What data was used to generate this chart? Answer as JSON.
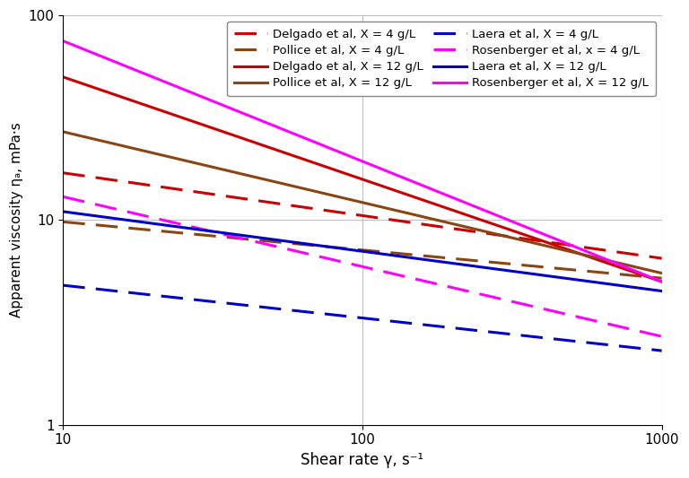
{
  "xlabel": "Shear rate γ, s⁻¹",
  "ylabel": "Apparent viscosity ηₐ, mPa·s",
  "xlim": [
    10,
    1000
  ],
  "ylim": [
    1,
    100
  ],
  "grid_color": "#c0c0c0",
  "series": [
    {
      "label": "Delgado et al, X = 4 g/L",
      "color": "#cc0000",
      "linestyle": "dashed",
      "y_at_10": 17.0,
      "y_at_1000": 6.5
    },
    {
      "label": "Pollice et al, X = 4 g/L",
      "color": "#8b4513",
      "linestyle": "dashed",
      "y_at_10": 9.8,
      "y_at_1000": 5.2
    },
    {
      "label": "Delgado et al, X = 12 g/L",
      "color": "#cc0000",
      "linestyle": "solid",
      "y_at_10": 50.0,
      "y_at_1000": 5.0
    },
    {
      "label": "Pollice et al, X = 12 g/L",
      "color": "#8b4513",
      "linestyle": "solid",
      "y_at_10": 27.0,
      "y_at_1000": 5.5
    },
    {
      "label": "Laera et al, X = 4 g/L",
      "color": "#0000cc",
      "linestyle": "dashed",
      "y_at_10": 4.8,
      "y_at_1000": 2.3
    },
    {
      "label": "Rosenberger et al, x = 4 g/L",
      "color": "#ff00ff",
      "linestyle": "dashed",
      "y_at_10": 13.0,
      "y_at_1000": 2.7
    },
    {
      "label": "Laera et al, X = 12 g/L",
      "color": "#0000cc",
      "linestyle": "solid",
      "y_at_10": 11.0,
      "y_at_1000": 4.5
    },
    {
      "label": "Rosenberger et al, X = 12 g/L",
      "color": "#ff00ff",
      "linestyle": "solid",
      "y_at_10": 75.0,
      "y_at_1000": 5.0
    }
  ],
  "lw_solid": 2.2,
  "lw_dashed": 2.2,
  "legend_fontsize": 9.5,
  "xlabel_fontsize": 12,
  "ylabel_fontsize": 11
}
